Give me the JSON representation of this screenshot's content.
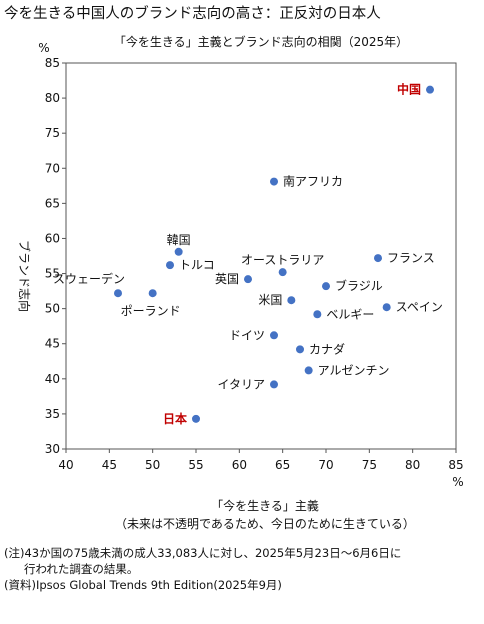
{
  "page_title": "今を生きる中国人のブランド志向の高さ：正反対の日本人",
  "chart_data": {
    "type": "scatter",
    "title": "「今を生きる」主義とブランド志向の相関（2025年）",
    "xlabel": "「今を生きる」主義",
    "xlabel_sub": "（未来は不透明であるため、今日のために生きている）",
    "ylabel": "ブランド志向",
    "x_unit": "%",
    "y_unit": "%",
    "xlim": [
      40,
      85
    ],
    "ylim": [
      30,
      85
    ],
    "xticks": [
      40,
      45,
      50,
      55,
      60,
      65,
      70,
      75,
      80,
      85
    ],
    "yticks": [
      30,
      35,
      40,
      45,
      50,
      55,
      60,
      65,
      70,
      75,
      80,
      85
    ],
    "grid": false,
    "marker_color": "#4472C4",
    "highlight_color": "#C00000",
    "points": [
      {
        "label": "中国",
        "x": 82,
        "y": 81.2,
        "highlight": true,
        "pos": "left"
      },
      {
        "label": "南アフリカ",
        "x": 64,
        "y": 68.1,
        "highlight": false,
        "pos": "right"
      },
      {
        "label": "韓国",
        "x": 53,
        "y": 58.1,
        "highlight": false,
        "pos": "above"
      },
      {
        "label": "トルコ",
        "x": 52,
        "y": 56.2,
        "highlight": false,
        "pos": "right"
      },
      {
        "label": "オーストラリア",
        "x": 65,
        "y": 55.2,
        "highlight": false,
        "pos": "above"
      },
      {
        "label": "英国",
        "x": 61,
        "y": 54.2,
        "highlight": false,
        "pos": "left"
      },
      {
        "label": "フランス",
        "x": 76,
        "y": 57.2,
        "highlight": false,
        "pos": "right"
      },
      {
        "label": "スウェーデン",
        "x": 46,
        "y": 52.2,
        "highlight": false,
        "pos": "above-left"
      },
      {
        "label": "ポーランド",
        "x": 50,
        "y": 52.2,
        "highlight": false,
        "pos": "below-left"
      },
      {
        "label": "ブラジル",
        "x": 70,
        "y": 53.2,
        "highlight": false,
        "pos": "right"
      },
      {
        "label": "米国",
        "x": 66,
        "y": 51.2,
        "highlight": false,
        "pos": "left"
      },
      {
        "label": "スペイン",
        "x": 77,
        "y": 50.2,
        "highlight": false,
        "pos": "right"
      },
      {
        "label": "ベルギー",
        "x": 69,
        "y": 49.2,
        "highlight": false,
        "pos": "right"
      },
      {
        "label": "ドイツ",
        "x": 64,
        "y": 46.2,
        "highlight": false,
        "pos": "left"
      },
      {
        "label": "カナダ",
        "x": 67,
        "y": 44.2,
        "highlight": false,
        "pos": "right"
      },
      {
        "label": "アルゼンチン",
        "x": 68,
        "y": 41.2,
        "highlight": false,
        "pos": "right"
      },
      {
        "label": "イタリア",
        "x": 64,
        "y": 39.2,
        "highlight": false,
        "pos": "left"
      },
      {
        "label": "日本",
        "x": 55,
        "y": 34.3,
        "highlight": true,
        "pos": "left"
      }
    ]
  },
  "notes": {
    "note_line1": "(注)43か国の75歳未満の成人33,083人に対し、2025年5月23日～6月6日に",
    "note_line2": "行われた調査の結果。",
    "source": "(資料)Ipsos Global Trends 9th Edition(2025年9月)"
  }
}
